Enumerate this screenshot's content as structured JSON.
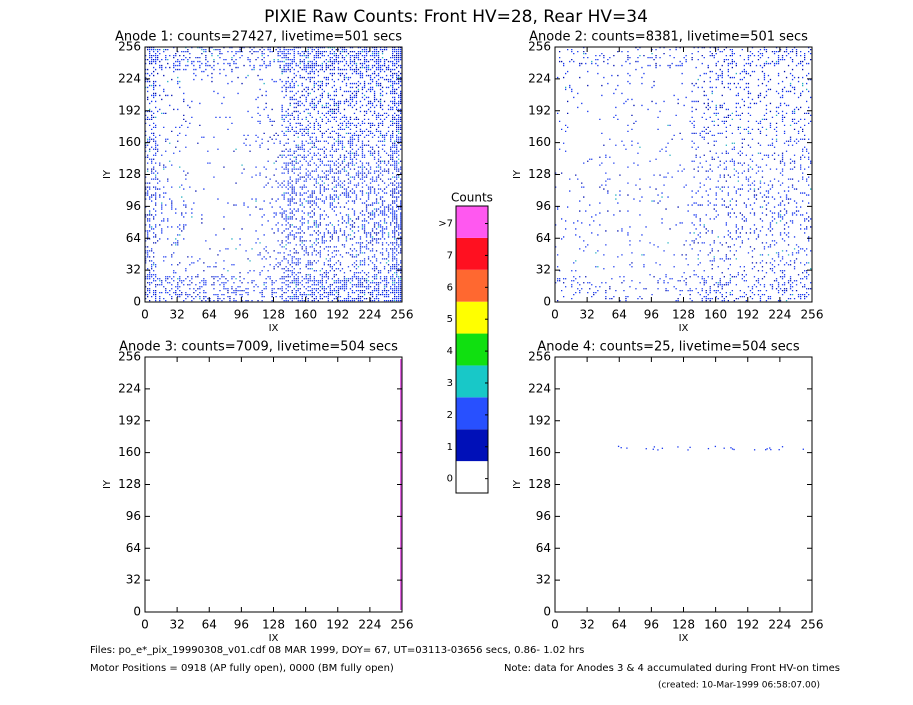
{
  "title": "PIXIE Raw Counts:  Front HV=28, Rear HV=34",
  "chart_data": [
    {
      "type": "heatmap",
      "title": "Anode 1: counts=27427, livetime=501 secs",
      "xlabel": "IX",
      "ylabel": "IY",
      "xlim": [
        0,
        256
      ],
      "ylim": [
        0,
        256
      ],
      "xticks": [
        0,
        32,
        64,
        96,
        128,
        160,
        192,
        224,
        256
      ],
      "yticks": [
        0,
        32,
        64,
        96,
        128,
        160,
        192,
        224,
        256
      ]
    },
    {
      "type": "heatmap",
      "title": "Anode 2: counts=8381, livetime=501 secs",
      "xlabel": "IX",
      "ylabel": "IY",
      "xlim": [
        0,
        256
      ],
      "ylim": [
        0,
        256
      ],
      "xticks": [
        0,
        32,
        64,
        96,
        128,
        160,
        192,
        224,
        256
      ],
      "yticks": [
        0,
        32,
        64,
        96,
        128,
        160,
        192,
        224,
        256
      ]
    },
    {
      "type": "heatmap",
      "title": "Anode 3: counts=7009, livetime=504 secs",
      "xlabel": "IX",
      "ylabel": "IY",
      "xlim": [
        0,
        256
      ],
      "ylim": [
        0,
        256
      ],
      "xticks": [
        0,
        32,
        64,
        96,
        128,
        160,
        192,
        224,
        256
      ],
      "yticks": [
        0,
        32,
        64,
        96,
        128,
        160,
        192,
        224,
        256
      ]
    },
    {
      "type": "heatmap",
      "title": "Anode 4: counts=25, livetime=504 secs",
      "xlabel": "IX",
      "ylabel": "IY",
      "xlim": [
        0,
        256
      ],
      "ylim": [
        0,
        256
      ],
      "xticks": [
        0,
        32,
        64,
        96,
        128,
        160,
        192,
        224,
        256
      ],
      "yticks": [
        0,
        32,
        64,
        96,
        128,
        160,
        192,
        224,
        256
      ]
    }
  ],
  "colorbar": {
    "title": "Counts",
    "ticks": [
      0,
      1,
      2,
      3,
      4,
      5,
      6,
      7,
      {
        "value": 8,
        "label": ">7"
      }
    ],
    "colors": [
      "#ffffff",
      "#0010b8",
      "#2850ff",
      "#18c8c8",
      "#10e010",
      "#ffff00",
      "#ff6830",
      "#ff1020",
      "#ff58f0"
    ]
  },
  "footer": {
    "files": "Files: po_e*_pix_19990308_v01.cdf   08 MAR 1999, DOY= 67, UT=03113-03656 secs,  0.86- 1.02 hrs",
    "motor": "Motor Positions = 0918 (AP fully open), 0000 (BM fully open)",
    "note": "Note: data for Anodes 3 & 4 accumulated during Front HV-on times",
    "created": "(created: 10-Mar-1999 06:58:07.00)"
  }
}
